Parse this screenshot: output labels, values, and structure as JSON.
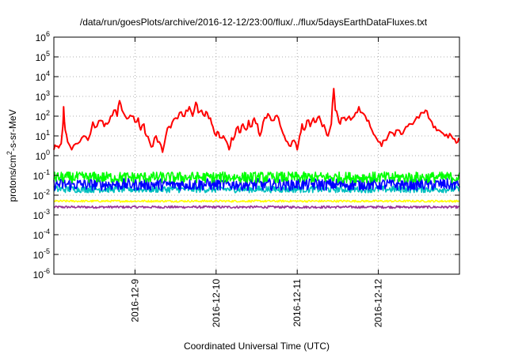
{
  "chart_data": {
    "type": "line",
    "title": "/data/run/goesPlots/archive/2016-12-12/23:00/flux/../flux/5daysEarthDataFluxes.txt",
    "xlabel": "Coordinated Universal Time (UTC)",
    "ylabel": {
      "base": "protons/cm",
      "sup": "2",
      "rest": "-s-sr-MeV"
    },
    "xlim": [
      "2016-12-08",
      "2016-12-13"
    ],
    "x_ticks": [
      "2016-12-9",
      "2016-12-10",
      "2016-12-11",
      "2016-12-12"
    ],
    "y_scale": "log",
    "ylim": [
      1e-06,
      1000000.0
    ],
    "y_ticks": [
      {
        "base": "10",
        "exp": "-6"
      },
      {
        "base": "10",
        "exp": "-5"
      },
      {
        "base": "10",
        "exp": "-4"
      },
      {
        "base": "10",
        "exp": "-3"
      },
      {
        "base": "10",
        "exp": "-2"
      },
      {
        "base": "10",
        "exp": "-1"
      },
      {
        "base": "10",
        "exp": "0"
      },
      {
        "base": "10",
        "exp": "1"
      },
      {
        "base": "10",
        "exp": "2"
      },
      {
        "base": "10",
        "exp": "3"
      },
      {
        "base": "10",
        "exp": "4"
      },
      {
        "base": "10",
        "exp": "5"
      },
      {
        "base": "10",
        "exp": "6"
      }
    ],
    "grid": "dotted",
    "series": [
      {
        "color": "#ff0000",
        "style": "solid",
        "points": [
          [
            0.0,
            2
          ],
          [
            0.03,
            3
          ],
          [
            0.06,
            2.5
          ],
          [
            0.09,
            4
          ],
          [
            0.11,
            30
          ],
          [
            0.12,
            300
          ],
          [
            0.14,
            20
          ],
          [
            0.17,
            5
          ],
          [
            0.22,
            2
          ],
          [
            0.27,
            4
          ],
          [
            0.32,
            5
          ],
          [
            0.37,
            10
          ],
          [
            0.42,
            6
          ],
          [
            0.48,
            50
          ],
          [
            0.53,
            30
          ],
          [
            0.58,
            60
          ],
          [
            0.62,
            30
          ],
          [
            0.66,
            40
          ],
          [
            0.7,
            100
          ],
          [
            0.74,
            200
          ],
          [
            0.78,
            100
          ],
          [
            0.81,
            600
          ],
          [
            0.84,
            200
          ],
          [
            0.88,
            100
          ],
          [
            0.92,
            80
          ],
          [
            0.96,
            100
          ],
          [
            1.0,
            50
          ],
          [
            1.04,
            80
          ],
          [
            1.07,
            20
          ],
          [
            1.11,
            40
          ],
          [
            1.14,
            10
          ],
          [
            1.18,
            5
          ],
          [
            1.22,
            3
          ],
          [
            1.26,
            10
          ],
          [
            1.3,
            5
          ],
          [
            1.34,
            1.5
          ],
          [
            1.38,
            10
          ],
          [
            1.42,
            30
          ],
          [
            1.46,
            50
          ],
          [
            1.5,
            80
          ],
          [
            1.55,
            150
          ],
          [
            1.59,
            100
          ],
          [
            1.63,
            200
          ],
          [
            1.67,
            300
          ],
          [
            1.71,
            100
          ],
          [
            1.75,
            500
          ],
          [
            1.78,
            150
          ],
          [
            1.82,
            200
          ],
          [
            1.86,
            100
          ],
          [
            1.89,
            150
          ],
          [
            1.93,
            80
          ],
          [
            1.96,
            30
          ],
          [
            2.0,
            10
          ],
          [
            2.03,
            15
          ],
          [
            2.06,
            8
          ],
          [
            2.09,
            10
          ],
          [
            2.13,
            5
          ],
          [
            2.16,
            2
          ],
          [
            2.19,
            8
          ],
          [
            2.23,
            10
          ],
          [
            2.27,
            30
          ],
          [
            2.3,
            15
          ],
          [
            2.33,
            40
          ],
          [
            2.37,
            20
          ],
          [
            2.4,
            60
          ],
          [
            2.44,
            30
          ],
          [
            2.47,
            80
          ],
          [
            2.51,
            40
          ],
          [
            2.54,
            10
          ],
          [
            2.58,
            50
          ],
          [
            2.62,
            80
          ],
          [
            2.66,
            100
          ],
          [
            2.7,
            60
          ],
          [
            2.73,
            100
          ],
          [
            2.77,
            80
          ],
          [
            2.81,
            20
          ],
          [
            2.84,
            10
          ],
          [
            2.88,
            5
          ],
          [
            2.92,
            3
          ],
          [
            2.96,
            6
          ],
          [
            3.0,
            2
          ],
          [
            3.03,
            10
          ],
          [
            3.06,
            40
          ],
          [
            3.09,
            20
          ],
          [
            3.12,
            60
          ],
          [
            3.16,
            30
          ],
          [
            3.2,
            80
          ],
          [
            3.23,
            50
          ],
          [
            3.27,
            100
          ],
          [
            3.31,
            30
          ],
          [
            3.35,
            20
          ],
          [
            3.38,
            10
          ],
          [
            3.42,
            40
          ],
          [
            3.45,
            2500
          ],
          [
            3.47,
            200
          ],
          [
            3.5,
            100
          ],
          [
            3.53,
            40
          ],
          [
            3.56,
            80
          ],
          [
            3.6,
            60
          ],
          [
            3.64,
            100
          ],
          [
            3.68,
            80
          ],
          [
            3.72,
            150
          ],
          [
            3.76,
            300
          ],
          [
            3.8,
            150
          ],
          [
            3.84,
            100
          ],
          [
            3.88,
            60
          ],
          [
            3.92,
            20
          ],
          [
            3.96,
            10
          ],
          [
            4.0,
            5
          ],
          [
            4.04,
            3
          ],
          [
            4.08,
            6
          ],
          [
            4.12,
            10
          ],
          [
            4.16,
            15
          ],
          [
            4.2,
            10
          ],
          [
            4.24,
            20
          ],
          [
            4.28,
            12
          ],
          [
            4.32,
            20
          ],
          [
            4.36,
            30
          ],
          [
            4.4,
            40
          ],
          [
            4.45,
            60
          ],
          [
            4.5,
            80
          ],
          [
            4.55,
            150
          ],
          [
            4.58,
            200
          ],
          [
            4.62,
            80
          ],
          [
            4.66,
            50
          ],
          [
            4.7,
            30
          ],
          [
            4.74,
            20
          ],
          [
            4.78,
            15
          ],
          [
            4.82,
            10
          ],
          [
            4.86,
            8
          ],
          [
            4.9,
            10
          ],
          [
            4.94,
            7
          ],
          [
            4.98,
            5
          ],
          [
            5.0,
            6
          ]
        ]
      },
      {
        "color": "#00ff00",
        "style": "noise",
        "center": 0.08,
        "amplitude_decades": 0.55
      },
      {
        "color": "#0000ff",
        "style": "noise",
        "center": 0.035,
        "amplitude_decades": 0.6
      },
      {
        "color": "#00bfbf",
        "style": "noise",
        "center": 0.02,
        "amplitude_decades": 0.35
      },
      {
        "color": "#ffff00",
        "style": "noise",
        "center": 0.005,
        "amplitude_decades": 0.1
      },
      {
        "color": "#993399",
        "style": "noise",
        "center": 0.0025,
        "amplitude_decades": 0.12
      }
    ]
  }
}
